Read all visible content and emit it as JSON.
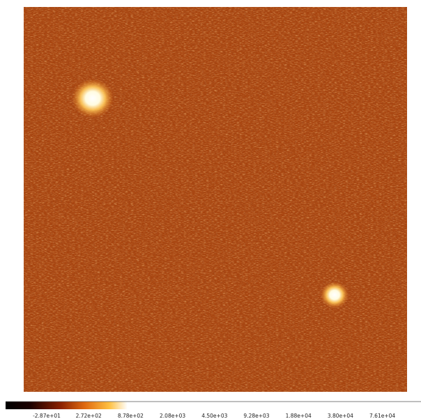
{
  "colorbar": {
    "ticks": [
      "-2.87e+01",
      "2.72e+02",
      "8.78e+02",
      "2.08e+03",
      "4.50e+03",
      "9.28e+03",
      "1.88e+04",
      "3.80e+04",
      "7.61e+04"
    ]
  }
}
